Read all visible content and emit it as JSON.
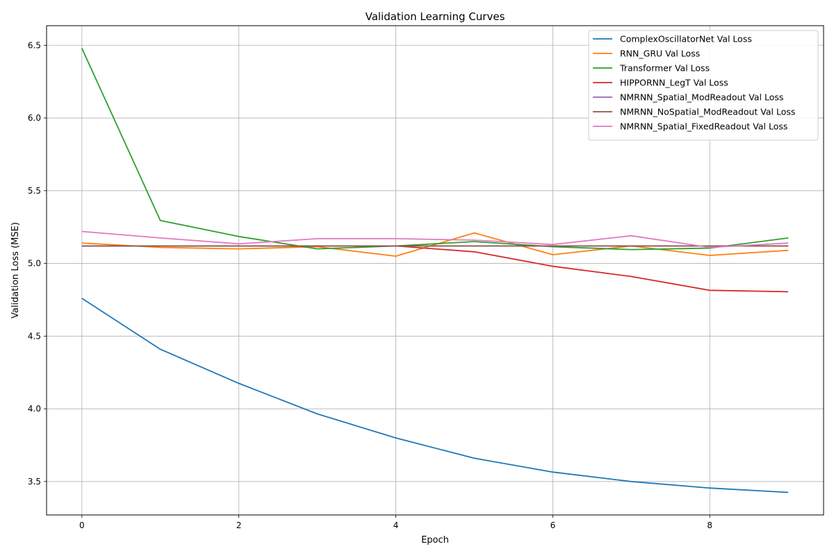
{
  "chart_data": {
    "type": "line",
    "title": "Validation Learning Curves",
    "xlabel": "Epoch",
    "ylabel": "Validation Loss (MSE)",
    "x": [
      0,
      1,
      2,
      3,
      4,
      5,
      6,
      7,
      8,
      9
    ],
    "xlim": [
      -0.45,
      9.45
    ],
    "ylim": [
      3.27,
      6.635
    ],
    "xticks": [
      0,
      2,
      4,
      6,
      8
    ],
    "yticks": [
      3.5,
      4.0,
      4.5,
      5.0,
      5.5,
      6.0,
      6.5
    ],
    "grid": true,
    "legend_position": "top-right",
    "series": [
      {
        "name": "ComplexOscillatorNet Val Loss",
        "color": "#1f77b4",
        "values": [
          4.76,
          4.41,
          4.175,
          3.965,
          3.8,
          3.66,
          3.565,
          3.5,
          3.455,
          3.425
        ]
      },
      {
        "name": "RNN_GRU Val Loss",
        "color": "#ff7f0e",
        "values": [
          5.14,
          5.11,
          5.1,
          5.115,
          5.05,
          5.21,
          5.06,
          5.12,
          5.055,
          5.09
        ]
      },
      {
        "name": "Transformer Val Loss",
        "color": "#2ca02c",
        "values": [
          6.48,
          5.295,
          5.185,
          5.1,
          5.12,
          5.15,
          5.115,
          5.095,
          5.105,
          5.175
        ]
      },
      {
        "name": "HIPPORNN_LegT Val Loss",
        "color": "#d62728",
        "values": [
          5.12,
          5.12,
          5.12,
          5.12,
          5.12,
          5.08,
          4.98,
          4.91,
          4.815,
          4.805
        ]
      },
      {
        "name": "NMRNN_Spatial_ModReadout Val Loss",
        "color": "#9467bd",
        "values": [
          5.12,
          5.12,
          5.12,
          5.12,
          5.12,
          5.12,
          5.12,
          5.12,
          5.12,
          5.12
        ]
      },
      {
        "name": "NMRNN_NoSpatial_ModReadout Val Loss",
        "color": "#8c564b",
        "values": [
          5.12,
          5.12,
          5.12,
          5.12,
          5.12,
          5.12,
          5.12,
          5.12,
          5.12,
          5.12
        ]
      },
      {
        "name": "NMRNN_Spatial_FixedReadout Val Loss",
        "color": "#e377c2",
        "values": [
          5.22,
          5.175,
          5.135,
          5.17,
          5.17,
          5.16,
          5.13,
          5.19,
          5.11,
          5.14
        ]
      }
    ]
  }
}
